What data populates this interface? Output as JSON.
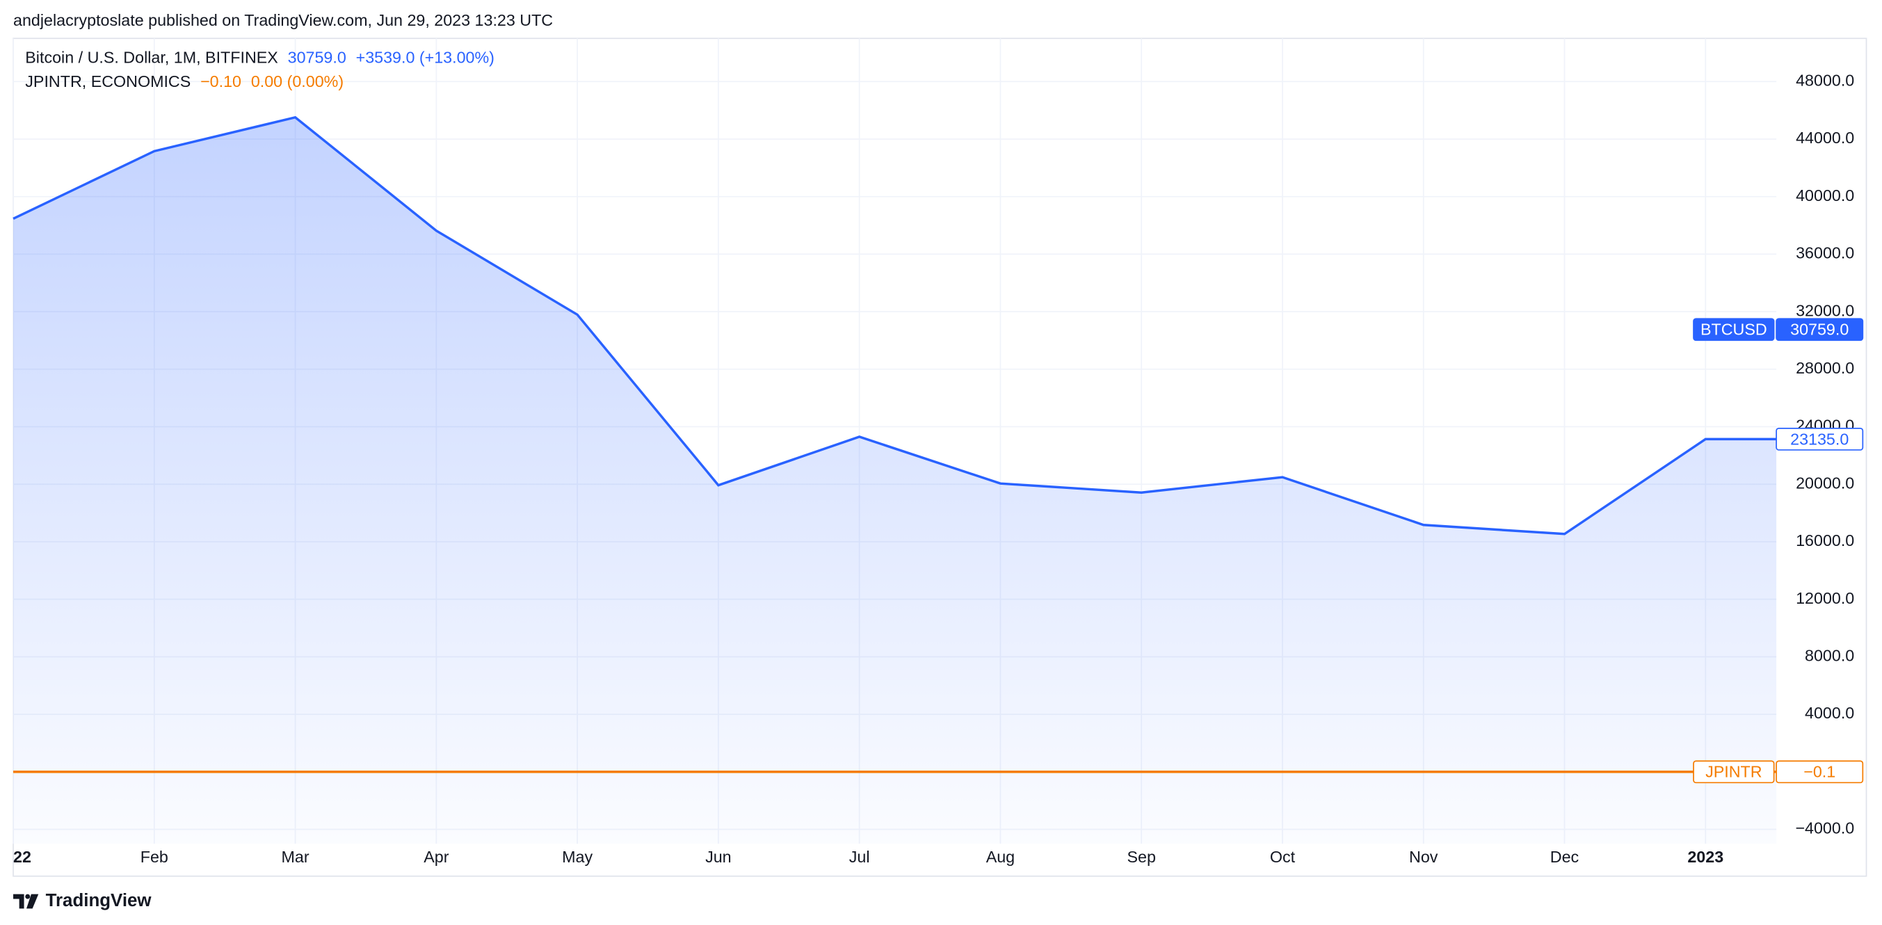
{
  "header": {
    "published": "andjelacryptoslate published on TradingView.com, Jun 29, 2023 13:23 UTC"
  },
  "footer": {
    "brand": "TradingView"
  },
  "chart_data": {
    "type": "line",
    "legend": [
      {
        "text": "Bitcoin / U.S. Dollar, 1M, BITFINEX",
        "parts": [
          "30759.0",
          "+3539.0 (+13.00%)"
        ],
        "color": "#2962ff"
      },
      {
        "text": "JPINTR, ECONOMICS",
        "parts": [
          "−0.10",
          "0.00 (0.00%)"
        ],
        "color": "#f57c00"
      }
    ],
    "categories": [
      "22",
      "Feb",
      "Mar",
      "Apr",
      "May",
      "Jun",
      "Jul",
      "Aug",
      "Sep",
      "Oct",
      "Nov",
      "Dec",
      "2023"
    ],
    "series": [
      {
        "name": "BTCUSD",
        "color": "#2962ff",
        "values": [
          38466,
          43160,
          45510,
          37630,
          31790,
          19930,
          23300,
          20050,
          19420,
          20490,
          17170,
          16540,
          23135
        ]
      },
      {
        "name": "JPINTR",
        "color": "#f57c00",
        "values": [
          -0.1,
          -0.1,
          -0.1,
          -0.1,
          -0.1,
          -0.1,
          -0.1,
          -0.1,
          -0.1,
          -0.1,
          -0.1,
          -0.1,
          -0.1
        ]
      }
    ],
    "price_tags": [
      {
        "name": "BTCUSD",
        "value": 30759,
        "label": "30759.0",
        "color": "#2962ff",
        "filled": true
      },
      {
        "value": 23135,
        "label": "23135.0",
        "color": "#2962ff",
        "filled": false
      },
      {
        "name": "JPINTR",
        "value": -0.1,
        "label": "−0.1",
        "color": "#f57c00",
        "filled": false
      }
    ],
    "ylim": [
      -5000,
      51000
    ],
    "yticks": [
      {
        "value": -4000,
        "label": "−4000.0"
      },
      {
        "value": 4000,
        "label": "4000.0"
      },
      {
        "value": 8000,
        "label": "8000.0"
      },
      {
        "value": 12000,
        "label": "12000.0"
      },
      {
        "value": 16000,
        "label": "16000.0"
      },
      {
        "value": 20000,
        "label": "20000.0"
      },
      {
        "value": 24000,
        "label": "24000.0"
      },
      {
        "value": 28000,
        "label": "28000.0"
      },
      {
        "value": 32000,
        "label": "32000.0"
      },
      {
        "value": 36000,
        "label": "36000.0"
      },
      {
        "value": 40000,
        "label": "40000.0"
      },
      {
        "value": 44000,
        "label": "44000.0"
      },
      {
        "value": 48000,
        "label": "48000.0"
      }
    ],
    "grid": true
  }
}
